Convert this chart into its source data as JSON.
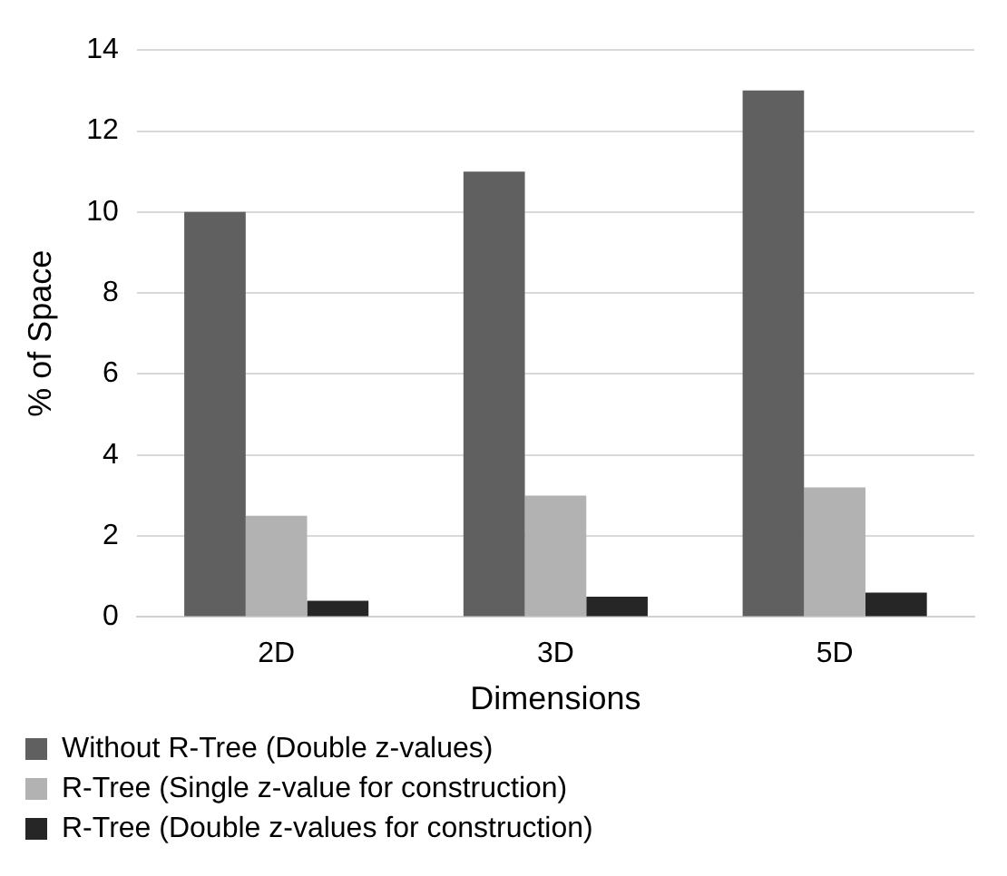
{
  "chart_data": {
    "type": "bar",
    "xlabel": "Dimensions",
    "ylabel": "% of Space",
    "categories": [
      "2D",
      "3D",
      "5D"
    ],
    "series": [
      {
        "name": "Without R-Tree (Double z-values)",
        "color": "#606060",
        "values": [
          10,
          11,
          13
        ]
      },
      {
        "name": "R-Tree (Single z-value for construction)",
        "color": "#b2b2b2",
        "values": [
          2.5,
          3,
          3.2
        ]
      },
      {
        "name": "R-Tree (Double z-values for construction)",
        "color": "#262626",
        "values": [
          0.4,
          0.5,
          0.6
        ]
      }
    ],
    "ylim": [
      0,
      14
    ],
    "yticks": [
      0,
      2,
      4,
      6,
      8,
      10,
      12,
      14
    ],
    "grid": "y",
    "legend": "bottom"
  }
}
